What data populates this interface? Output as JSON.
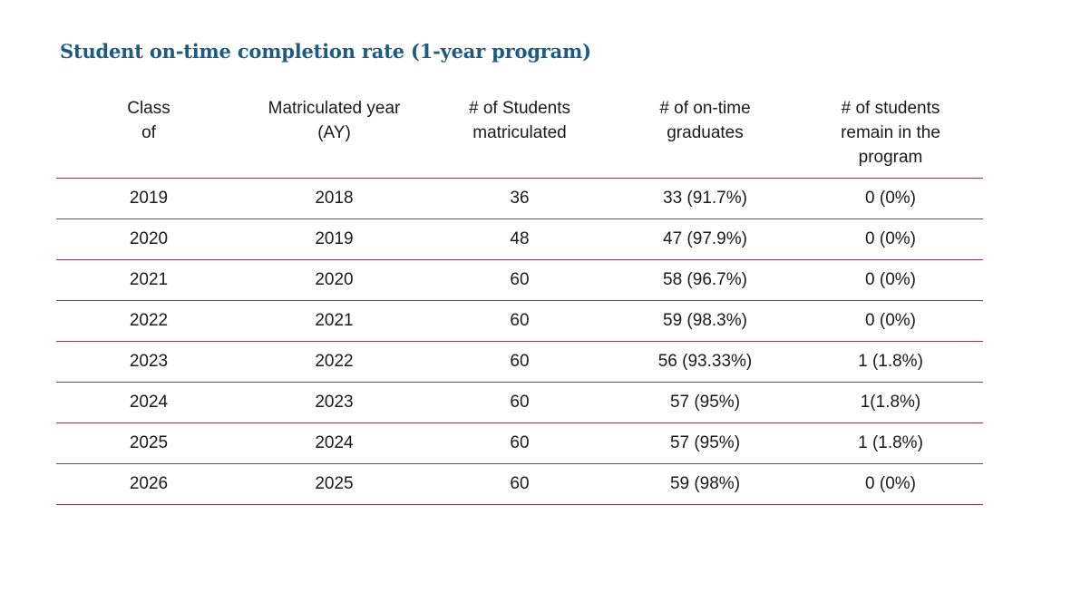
{
  "title": "Student on-time completion rate (1-year program)",
  "colors": {
    "title": "#1c5c82",
    "rule": "#8a3a60",
    "text": "#1a1a1a"
  },
  "table": {
    "headers": [
      [
        "Class",
        "of"
      ],
      [
        "Matriculated year",
        "(AY)"
      ],
      [
        "# of Students",
        "matriculated"
      ],
      [
        "# of on-time",
        "graduates"
      ],
      [
        "# of students",
        "remain in the",
        "program"
      ]
    ],
    "rows": [
      [
        "2019",
        "2018",
        "36",
        "33 (91.7%)",
        "0 (0%)"
      ],
      [
        "2020",
        "2019",
        "48",
        "47 (97.9%)",
        "0 (0%)"
      ],
      [
        "2021",
        "2020",
        "60",
        "58 (96.7%)",
        "0 (0%)"
      ],
      [
        "2022",
        "2021",
        "60",
        "59 (98.3%)",
        "0 (0%)"
      ],
      [
        "2023",
        "2022",
        "60",
        "56 (93.33%)",
        "1 (1.8%)"
      ],
      [
        "2024",
        "2023",
        "60",
        "57 (95%)",
        "1(1.8%)"
      ],
      [
        "2025",
        "2024",
        "60",
        "57 (95%)",
        "1 (1.8%)"
      ],
      [
        "2026",
        "2025",
        "60",
        "59 (98%)",
        "0 (0%)"
      ]
    ]
  }
}
